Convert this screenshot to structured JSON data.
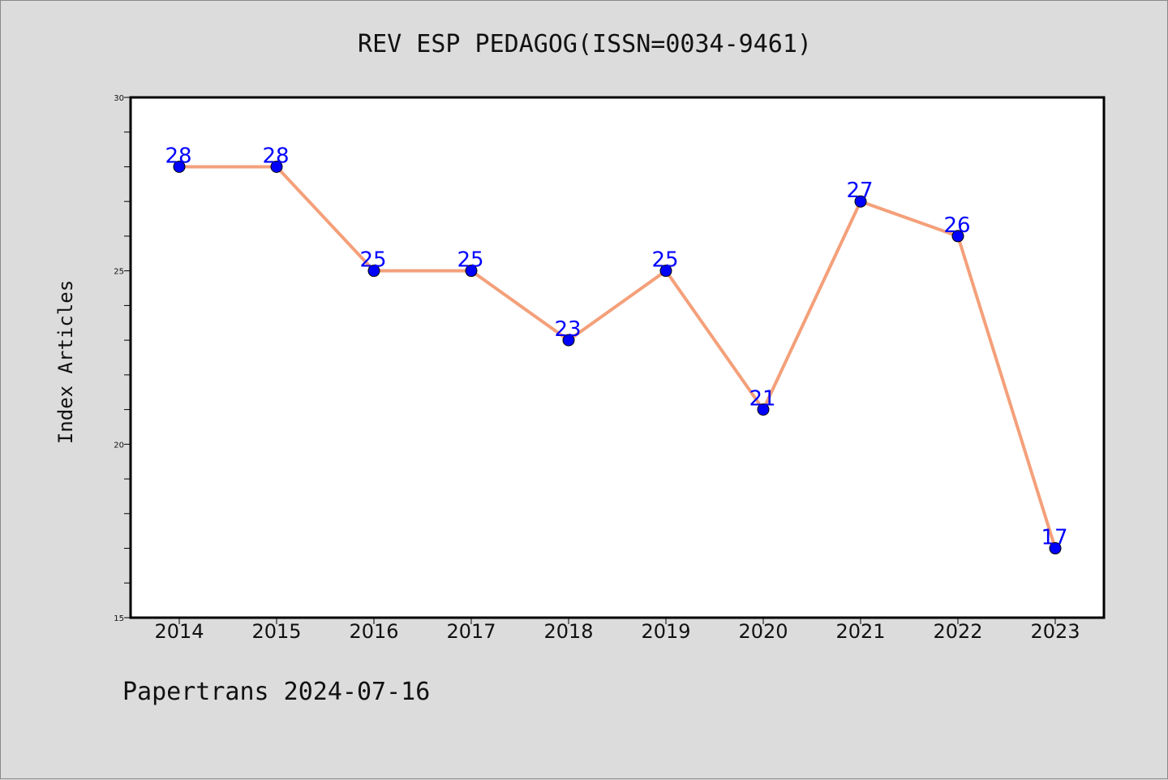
{
  "title": "REV ESP PEDAGOG(ISSN=0034-9461)",
  "footer": "Papertrans 2024-07-16",
  "chart_data": {
    "type": "line",
    "title": "REV ESP PEDAGOG(ISSN=0034-9461)",
    "xlabel": "",
    "ylabel": "Index Articles",
    "categories": [
      "2014",
      "2015",
      "2016",
      "2017",
      "2018",
      "2019",
      "2020",
      "2021",
      "2022",
      "2023"
    ],
    "series": [
      {
        "values": [
          28,
          28,
          25,
          25,
          23,
          25,
          21,
          27,
          26,
          17
        ]
      }
    ],
    "ylim": [
      15,
      30
    ],
    "yticks": [
      15,
      20,
      25,
      30
    ],
    "grid": false,
    "line_color": "#f4a07a",
    "marker_color": "#0000ff",
    "label_color": "#0000ff"
  }
}
